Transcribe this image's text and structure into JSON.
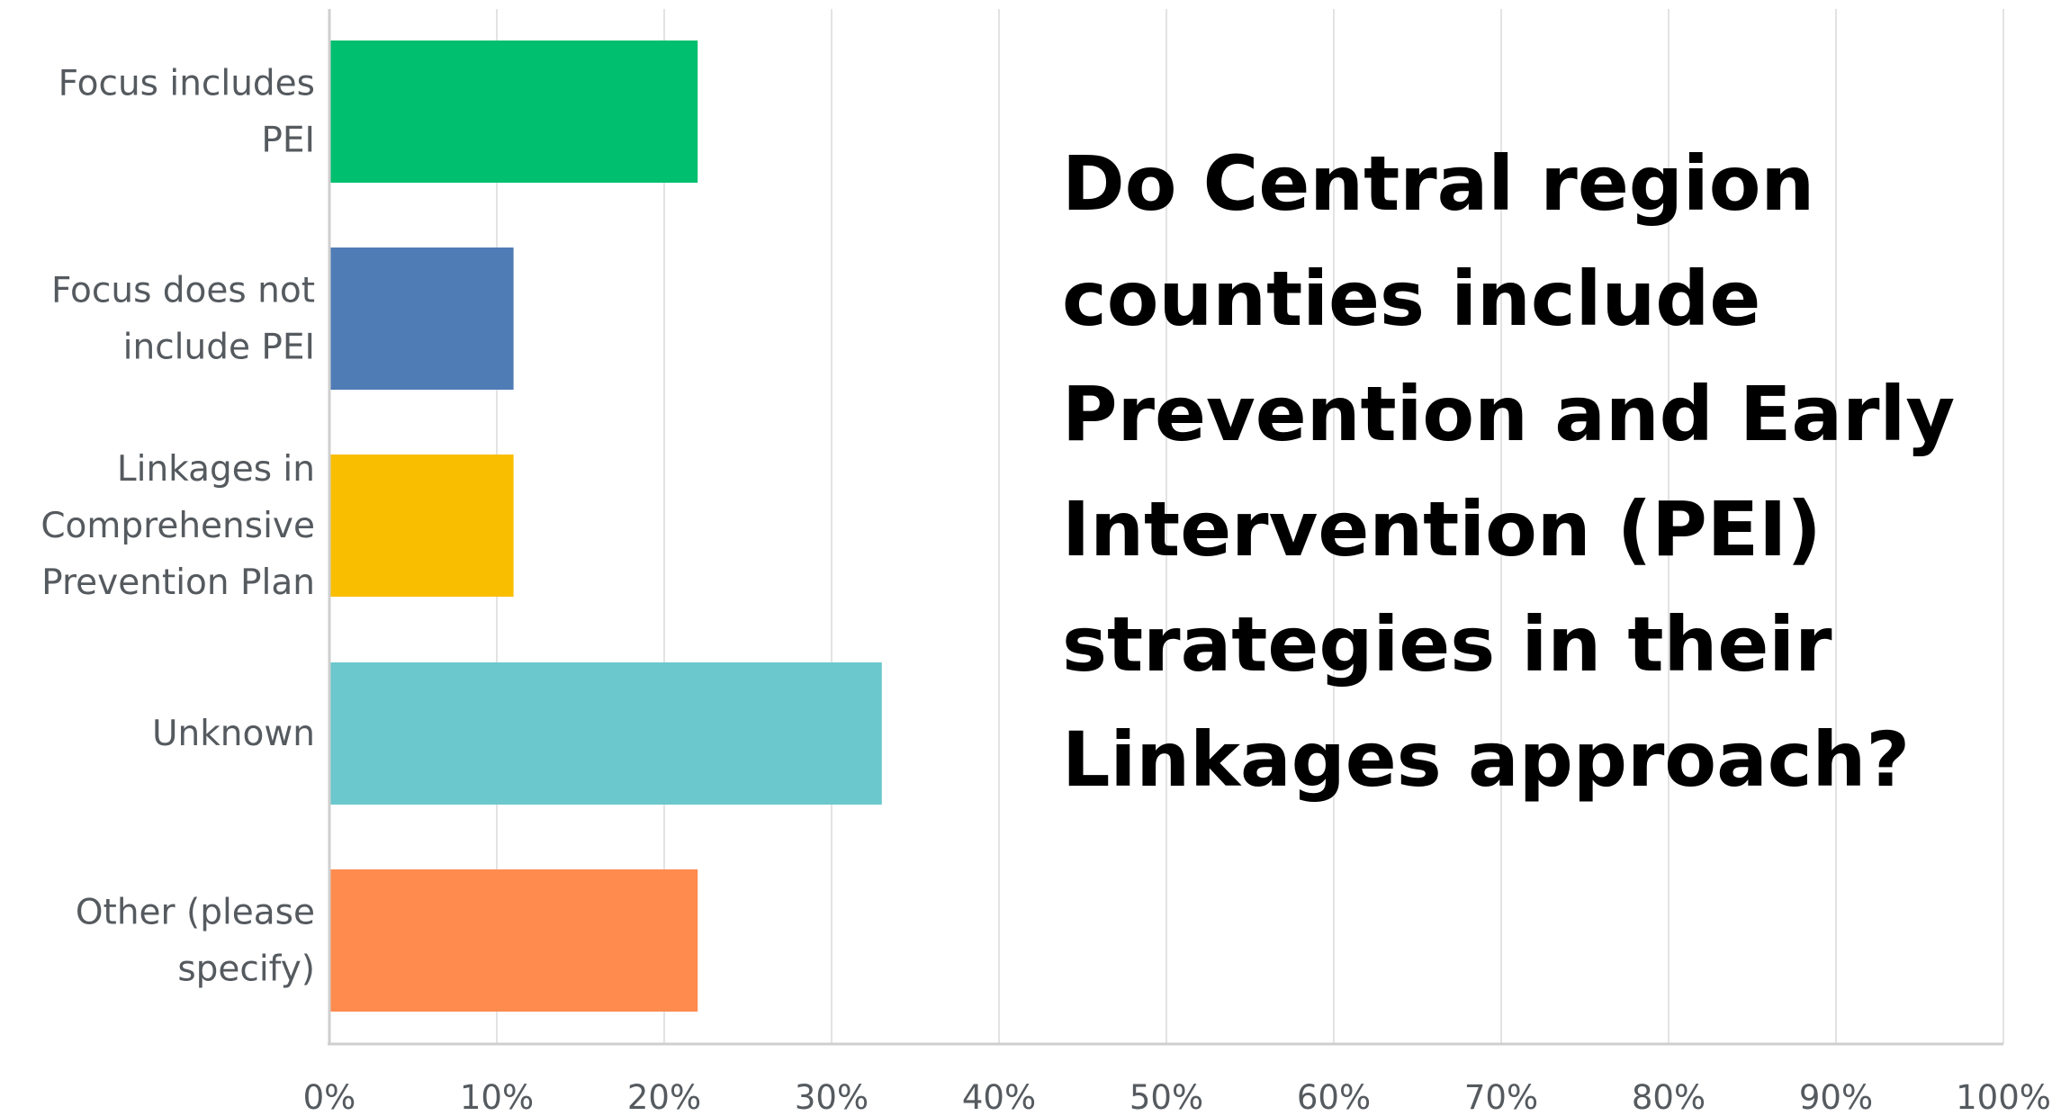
{
  "chart_data": {
    "type": "bar",
    "orientation": "horizontal",
    "categories": [
      [
        "Focus includes",
        "PEI"
      ],
      [
        "Focus does not",
        "include PEI"
      ],
      [
        "Linkages in",
        "Comprehensive",
        "Prevention Plan"
      ],
      [
        "Unknown"
      ],
      [
        "Other (please",
        "specify)"
      ]
    ],
    "values": [
      22,
      11,
      11,
      33,
      22
    ],
    "colors": [
      "#00bf6f",
      "#507cb6",
      "#f9be00",
      "#6bc8cd",
      "#ff8b4f"
    ],
    "xlim": [
      0,
      100
    ],
    "xticks": [
      "0%",
      "10%",
      "20%",
      "30%",
      "40%",
      "50%",
      "60%",
      "70%",
      "80%",
      "90%",
      "100%"
    ],
    "grid": true,
    "title": "",
    "xlabel": "",
    "ylabel": ""
  },
  "question": {
    "lines": [
      "Do Central region",
      "counties include",
      "Prevention and Early",
      "Intervention (PEI)",
      "strategies in their",
      "Linkages approach?"
    ]
  }
}
